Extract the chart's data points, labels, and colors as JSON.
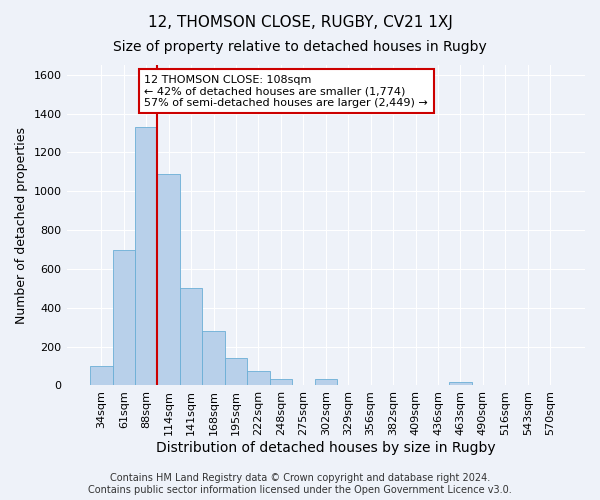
{
  "title": "12, THOMSON CLOSE, RUGBY, CV21 1XJ",
  "subtitle": "Size of property relative to detached houses in Rugby",
  "xlabel": "Distribution of detached houses by size in Rugby",
  "ylabel": "Number of detached properties",
  "footer_line1": "Contains HM Land Registry data © Crown copyright and database right 2024.",
  "footer_line2": "Contains public sector information licensed under the Open Government Licence v3.0.",
  "categories": [
    "34sqm",
    "61sqm",
    "88sqm",
    "114sqm",
    "141sqm",
    "168sqm",
    "195sqm",
    "222sqm",
    "248sqm",
    "275sqm",
    "302sqm",
    "329sqm",
    "356sqm",
    "382sqm",
    "409sqm",
    "436sqm",
    "463sqm",
    "490sqm",
    "516sqm",
    "543sqm",
    "570sqm"
  ],
  "bar_values": [
    100,
    700,
    1330,
    1090,
    500,
    280,
    140,
    75,
    35,
    0,
    35,
    0,
    0,
    0,
    0,
    0,
    20,
    0,
    0,
    0,
    0
  ],
  "bar_color": "#b8d0ea",
  "bar_edgecolor": "#6aaed6",
  "property_line_x": 3.0,
  "annotation_text_line1": "12 THOMSON CLOSE: 108sqm",
  "annotation_text_line2": "← 42% of detached houses are smaller (1,774)",
  "annotation_text_line3": "57% of semi-detached houses are larger (2,449) →",
  "annotation_box_facecolor": "#ffffff",
  "annotation_box_edgecolor": "#cc0000",
  "vline_color": "#cc0000",
  "ylim": [
    0,
    1650
  ],
  "yticks": [
    0,
    200,
    400,
    600,
    800,
    1000,
    1200,
    1400,
    1600
  ],
  "background_color": "#eef2f9",
  "grid_color": "#ffffff",
  "title_fontsize": 11,
  "subtitle_fontsize": 10,
  "ylabel_fontsize": 9,
  "xlabel_fontsize": 10,
  "tick_fontsize": 8,
  "footer_fontsize": 7
}
